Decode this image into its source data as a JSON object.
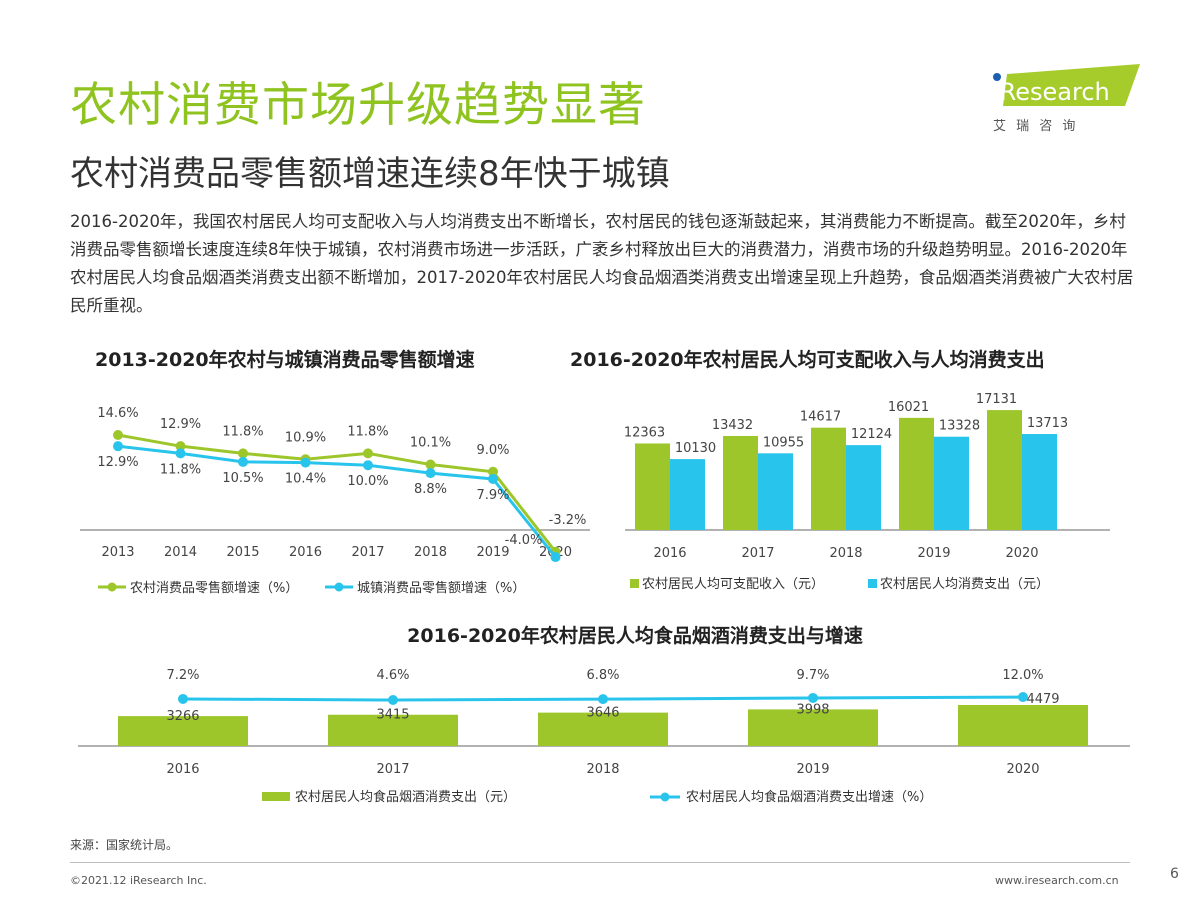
{
  "title": "农村消费市场升级趋势显著",
  "subtitle": "农村消费品零售额增速连续8年快于城镇",
  "paragraph": "2016-2020年，我国农村居民人均可支配收入与人均消费支出不断增长，农村居民的钱包逐渐鼓起来，其消费能力不断提高。截至2020年，乡村消费品零售额增长速度连续8年快于城镇，农村消费市场进一步活跃，广袤乡村释放出巨大的消费潜力，消费市场的升级趋势明显。2016-2020年农村居民人均食品烟酒类消费支出额不断增加，2017-2020年农村居民人均食品烟酒类消费支出增速呈现上升趋势，食品烟酒类消费被广大农村居民所重视。",
  "logo": {
    "brand": "iResearch",
    "cn": "艾 瑞 咨 询"
  },
  "colors": {
    "green": "#9dc62a",
    "blue": "#29c4ec",
    "title_green": "#8fc31f"
  },
  "chart_data": [
    {
      "type": "line",
      "title": "2013-2020年农村与城镇消费品零售额增速",
      "categories": [
        "2013",
        "2014",
        "2015",
        "2016",
        "2017",
        "2018",
        "2019",
        "2020"
      ],
      "series": [
        {
          "name": "农村消费品零售额增速（%）",
          "values": [
            14.6,
            12.9,
            11.8,
            10.9,
            11.8,
            10.1,
            9.0,
            -3.2
          ],
          "labels": [
            "14.6%",
            "12.9%",
            "11.8%",
            "10.9%",
            "11.8%",
            "10.1%",
            "9.0%",
            "-3.2%"
          ],
          "color": "#9dc62a"
        },
        {
          "name": "城镇消费品零售额增速（%）",
          "values": [
            12.9,
            11.8,
            10.5,
            10.4,
            10.0,
            8.8,
            7.9,
            -4.0
          ],
          "labels": [
            "12.9%",
            "11.8%",
            "10.5%",
            "10.4%",
            "10.0%",
            "8.8%",
            "7.9%",
            "-4.0%"
          ],
          "color": "#29c4ec"
        }
      ],
      "legend": "bottom"
    },
    {
      "type": "bar",
      "title": "2016-2020年农村居民人均可支配收入与人均消费支出",
      "categories": [
        "2016",
        "2017",
        "2018",
        "2019",
        "2020"
      ],
      "series": [
        {
          "name": "农村居民人均可支配收入（元）",
          "values": [
            12363,
            13432,
            14617,
            16021,
            17131
          ],
          "color": "#9dc62a"
        },
        {
          "name": "农村居民人均消费支出（元）",
          "values": [
            10130,
            10955,
            12124,
            13328,
            13713
          ],
          "color": "#29c4ec"
        }
      ],
      "legend": "bottom"
    },
    {
      "type": "bar+line",
      "title": "2016-2020年农村居民人均食品烟酒消费支出与增速",
      "categories": [
        "2016",
        "2017",
        "2018",
        "2019",
        "2020"
      ],
      "series": [
        {
          "name": "农村居民人均食品烟酒消费支出（元）",
          "values": [
            3266,
            3415,
            3646,
            3998,
            4479
          ],
          "color": "#9dc62a"
        },
        {
          "name": "农村居民人均食品烟酒消费支出增速（%）",
          "values": [
            7.2,
            4.6,
            6.8,
            9.7,
            12.0
          ],
          "labels": [
            "7.2%",
            "4.6%",
            "6.8%",
            "9.7%",
            "12.0%"
          ],
          "color": "#29c4ec"
        }
      ],
      "legend": "bottom"
    }
  ],
  "footer": {
    "source": "来源：国家统计局。",
    "copyright": "©2021.12 iResearch Inc.",
    "url": "www.iresearch.com.cn",
    "page": "6"
  }
}
